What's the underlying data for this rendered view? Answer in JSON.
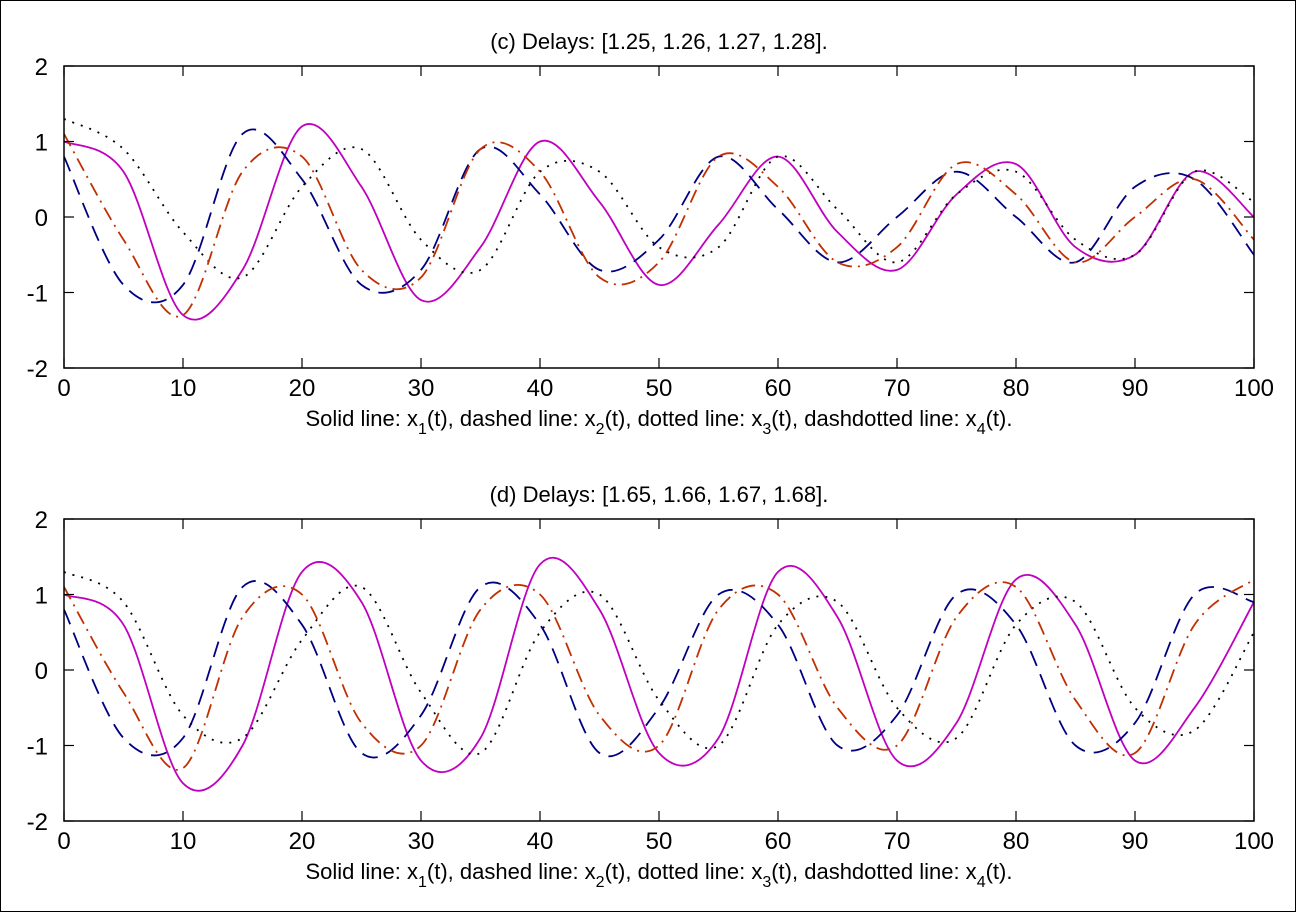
{
  "chart_data": [
    {
      "type": "line",
      "title": "(c) Delays: [1.25, 1.26, 1.27, 1.28].",
      "xlabel": {
        "prefix": "Solid line: x",
        "parts": [
          {
            "sub": "1",
            "text": "(t), dashed line: x"
          },
          {
            "sub": "2",
            "text": "(t), dotted line: x"
          },
          {
            "sub": "3",
            "text": "(t), dashdotted line: x"
          },
          {
            "sub": "4",
            "text": "(t)."
          }
        ]
      },
      "xlim": [
        0,
        100
      ],
      "ylim": [
        -2,
        2
      ],
      "xticks": [
        "0",
        "10",
        "20",
        "30",
        "40",
        "50",
        "60",
        "70",
        "80",
        "90",
        "100"
      ],
      "yticks": [
        "2",
        "1",
        "0",
        "-1",
        "-2"
      ],
      "grid": false,
      "x": [
        0,
        5,
        10,
        15,
        20,
        25,
        30,
        35,
        40,
        45,
        50,
        55,
        60,
        65,
        70,
        75,
        80,
        85,
        90,
        95,
        100
      ],
      "series": [
        {
          "style": "solid",
          "color": "#c000c0",
          "values": [
            1.0,
            0.6,
            -1.3,
            -0.7,
            1.2,
            0.4,
            -1.1,
            -0.4,
            1.0,
            0.2,
            -0.9,
            -0.1,
            0.8,
            -0.2,
            -0.7,
            0.3,
            0.7,
            -0.4,
            -0.5,
            0.6,
            0.0
          ]
        },
        {
          "style": "dashed",
          "color": "#000080",
          "values": [
            0.8,
            -0.9,
            -0.9,
            1.1,
            0.5,
            -0.9,
            -0.7,
            0.9,
            0.3,
            -0.7,
            -0.3,
            0.8,
            0.1,
            -0.6,
            0.0,
            0.6,
            0.0,
            -0.6,
            0.4,
            0.5,
            -0.5
          ]
        },
        {
          "style": "dotted",
          "color": "#000000",
          "values": [
            1.3,
            0.9,
            -0.2,
            -0.8,
            0.4,
            0.9,
            -0.3,
            -0.7,
            0.6,
            0.6,
            -0.4,
            -0.4,
            0.8,
            0.1,
            -0.6,
            0.3,
            0.6,
            -0.3,
            -0.5,
            0.6,
            0.2
          ]
        },
        {
          "style": "dashdot",
          "color": "#c03000",
          "values": [
            1.1,
            -0.3,
            -1.3,
            0.6,
            0.8,
            -0.7,
            -0.8,
            0.9,
            0.6,
            -0.8,
            -0.6,
            0.8,
            0.4,
            -0.6,
            -0.4,
            0.7,
            0.3,
            -0.6,
            0.0,
            0.5,
            -0.3
          ]
        }
      ]
    },
    {
      "type": "line",
      "title": "(d) Delays: [1.65, 1.66, 1.67, 1.68].",
      "xlabel": {
        "prefix": "Solid line: x",
        "parts": [
          {
            "sub": "1",
            "text": "(t), dashed line: x"
          },
          {
            "sub": "2",
            "text": "(t), dotted line: x"
          },
          {
            "sub": "3",
            "text": "(t), dashdotted line: x"
          },
          {
            "sub": "4",
            "text": "(t)."
          }
        ]
      },
      "xlim": [
        0,
        100
      ],
      "ylim": [
        -2,
        2
      ],
      "xticks": [
        "0",
        "10",
        "20",
        "30",
        "40",
        "50",
        "60",
        "70",
        "80",
        "90",
        "100"
      ],
      "yticks": [
        "2",
        "1",
        "0",
        "-1",
        "-2"
      ],
      "grid": false,
      "x": [
        0,
        5,
        10,
        15,
        20,
        25,
        30,
        35,
        40,
        45,
        50,
        55,
        60,
        65,
        70,
        75,
        80,
        85,
        90,
        95,
        100
      ],
      "series": [
        {
          "style": "solid",
          "color": "#c000c0",
          "values": [
            1.0,
            0.6,
            -1.5,
            -1.0,
            1.3,
            0.9,
            -1.2,
            -0.9,
            1.4,
            0.8,
            -1.1,
            -0.9,
            1.3,
            0.7,
            -1.2,
            -0.7,
            1.2,
            0.6,
            -1.2,
            -0.5,
            0.9
          ]
        },
        {
          "style": "dashed",
          "color": "#000080",
          "values": [
            0.8,
            -0.9,
            -0.9,
            1.1,
            0.6,
            -1.1,
            -0.6,
            1.1,
            0.6,
            -1.1,
            -0.5,
            1.0,
            0.6,
            -1.0,
            -0.6,
            1.0,
            0.6,
            -1.0,
            -0.7,
            1.0,
            0.9
          ]
        },
        {
          "style": "dotted",
          "color": "#000000",
          "values": [
            1.3,
            0.9,
            -0.6,
            -0.9,
            0.4,
            1.1,
            -0.3,
            -1.1,
            0.5,
            1.0,
            -0.4,
            -1.0,
            0.6,
            0.9,
            -0.5,
            -0.9,
            0.6,
            0.9,
            -0.5,
            -0.8,
            0.5
          ]
        },
        {
          "style": "dashdot",
          "color": "#c03000",
          "values": [
            1.1,
            -0.3,
            -1.3,
            0.7,
            1.0,
            -0.7,
            -1.0,
            0.8,
            1.0,
            -0.6,
            -1.0,
            0.8,
            1.0,
            -0.5,
            -1.0,
            0.7,
            1.1,
            -0.4,
            -1.1,
            0.6,
            1.2
          ]
        }
      ]
    }
  ]
}
